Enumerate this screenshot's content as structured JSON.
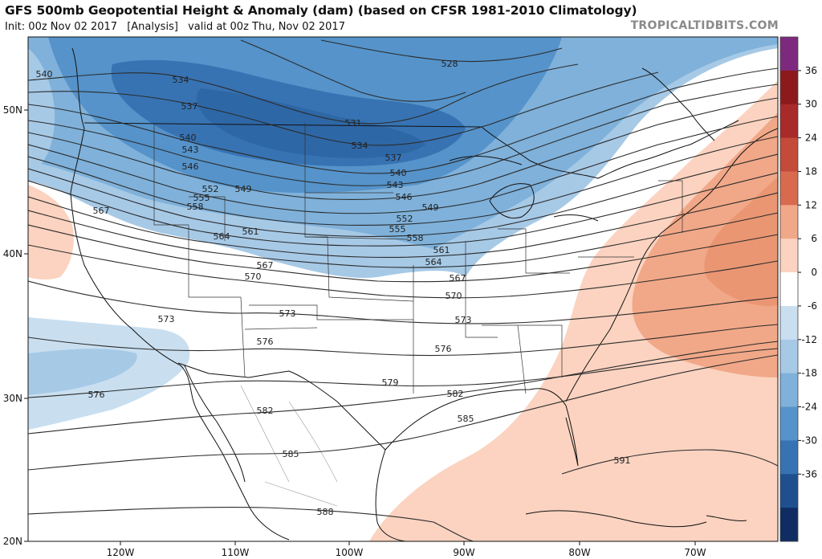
{
  "header": {
    "title": "GFS 500mb Geopotential Height & Anomaly (dam) (based on CFSR 1981-2010 Climatology)",
    "init": "Init: 00z Nov 02 2017",
    "analysis": "[Analysis]",
    "valid": "valid at 00z Thu, Nov 02 2017",
    "watermark": "TROPICALTIDBITS.COM"
  },
  "map": {
    "lat_labels": [
      "50N",
      "40N",
      "30N",
      "20N"
    ],
    "lon_labels": [
      "120W",
      "110W",
      "100W",
      "90W",
      "80W",
      "70W"
    ],
    "contour_labels": [
      "540",
      "534",
      "528",
      "537",
      "531",
      "540",
      "534",
      "543",
      "537",
      "546",
      "540",
      "552",
      "549",
      "543",
      "555",
      "546",
      "558",
      "549",
      "552",
      "567",
      "561",
      "564",
      "555",
      "558",
      "567",
      "561",
      "570",
      "564",
      "567",
      "570",
      "573",
      "573",
      "573",
      "576",
      "576",
      "576",
      "579",
      "582",
      "582",
      "585",
      "585",
      "588",
      "591"
    ]
  },
  "colorbar": {
    "labels": [
      "36",
      "30",
      "24",
      "18",
      "12",
      "6",
      "0",
      "-6",
      "-12",
      "-18",
      "-24",
      "-30",
      "-36"
    ],
    "colors": [
      "#7d2a7e",
      "#8c1a1a",
      "#a82a2a",
      "#c44a3a",
      "#d86a4e",
      "#f1a888",
      "#fbd3c0",
      "#ffffff",
      "#c9dff0",
      "#a6c9e6",
      "#7fb1da",
      "#5593ca",
      "#3773b3",
      "#1f4f8e",
      "#0f2d63"
    ]
  }
}
